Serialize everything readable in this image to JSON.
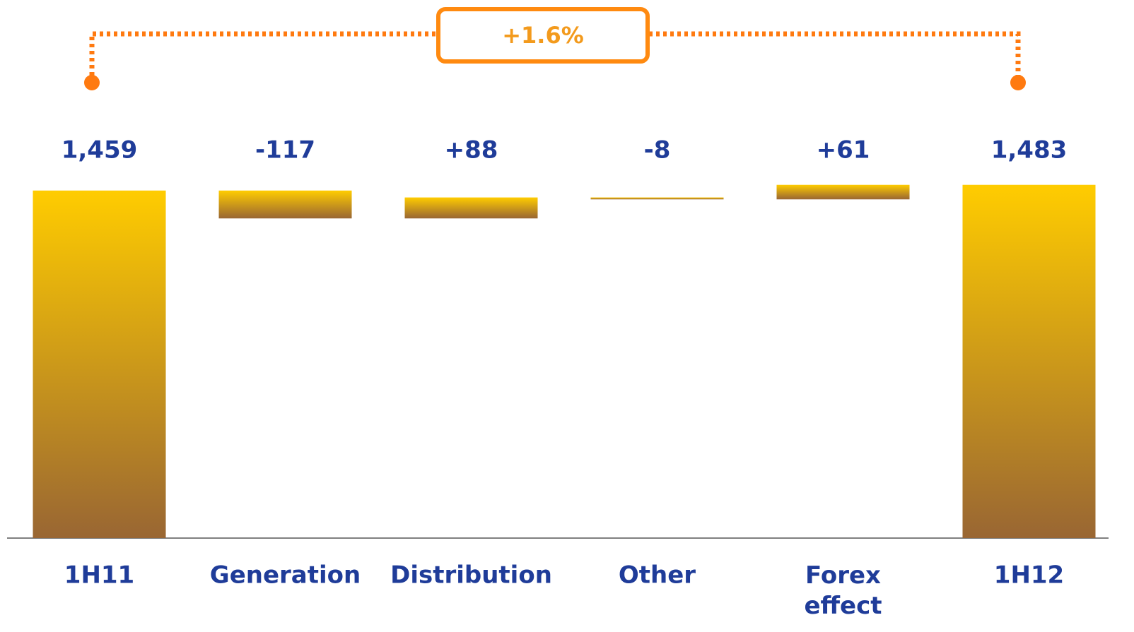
{
  "chart_data": {
    "type": "waterfall",
    "categories": [
      "1H11",
      "Generation",
      "Distribution",
      "Other",
      "Forex effect",
      "1H12"
    ],
    "values": [
      1459,
      -117,
      88,
      -8,
      61,
      1483
    ],
    "value_labels": [
      "1,459",
      "-117",
      "+88",
      "-8",
      "+61",
      "1,483"
    ],
    "ylim": [
      0,
      1500
    ],
    "annotation": "+1.6%",
    "color_top": "#ffcc00",
    "color_bottom": "#996633"
  }
}
